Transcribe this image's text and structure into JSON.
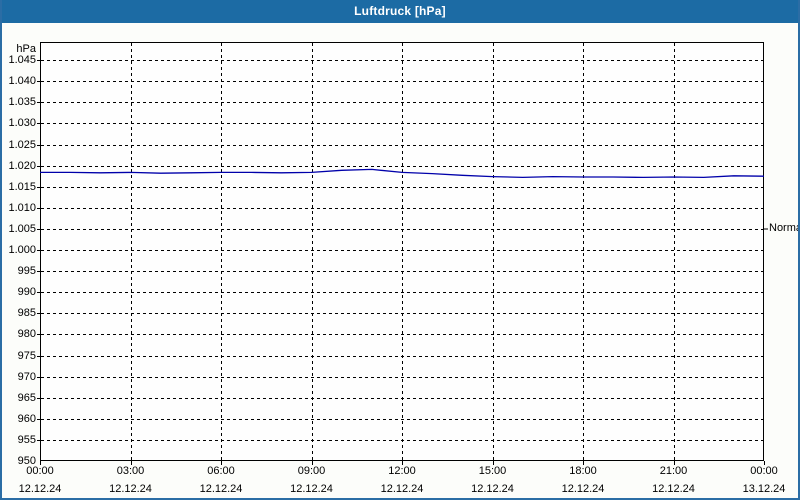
{
  "window": {
    "title": "Luftdruck [hPa]"
  },
  "colors": {
    "titlebar_bg": "#1c6ba4",
    "titlebar_text": "#ffffff",
    "window_border": "#2b6da5",
    "content_bg": "#fcfdfa",
    "plot_bg": "#fefefe",
    "plot_border": "#000000",
    "grid": "#000000",
    "line": "#0000aa",
    "label_text": "#000000"
  },
  "chart_data": {
    "type": "line",
    "title": "Luftdruck [hPa]",
    "xlabel": "",
    "ylabel": "hPa",
    "ylim": [
      950,
      1049.3
    ],
    "x_hours_range": [
      0,
      24
    ],
    "grid": "dashed",
    "legend": "none",
    "y_ticks": [
      {
        "value": 1045,
        "label": "1.045"
      },
      {
        "value": 1040,
        "label": "1.040"
      },
      {
        "value": 1035,
        "label": "1.035"
      },
      {
        "value": 1030,
        "label": "1.030"
      },
      {
        "value": 1025,
        "label": "1.025"
      },
      {
        "value": 1020,
        "label": "1.020"
      },
      {
        "value": 1015,
        "label": "1.015"
      },
      {
        "value": 1010,
        "label": "1.010"
      },
      {
        "value": 1005,
        "label": "1.005"
      },
      {
        "value": 1000,
        "label": "1.000"
      },
      {
        "value": 995,
        "label": "995"
      },
      {
        "value": 990,
        "label": "990"
      },
      {
        "value": 985,
        "label": "985"
      },
      {
        "value": 980,
        "label": "980"
      },
      {
        "value": 975,
        "label": "975"
      },
      {
        "value": 970,
        "label": "970"
      },
      {
        "value": 965,
        "label": "965"
      },
      {
        "value": 960,
        "label": "960"
      },
      {
        "value": 955,
        "label": "955"
      },
      {
        "value": 950,
        "label": "950"
      }
    ],
    "x_ticks": [
      {
        "hour": 0,
        "time": "00:00",
        "date": "12.12.24"
      },
      {
        "hour": 3,
        "time": "03:00",
        "date": "12.12.24"
      },
      {
        "hour": 6,
        "time": "06:00",
        "date": "12.12.24"
      },
      {
        "hour": 9,
        "time": "09:00",
        "date": "12.12.24"
      },
      {
        "hour": 12,
        "time": "12:00",
        "date": "12.12.24"
      },
      {
        "hour": 15,
        "time": "15:00",
        "date": "12.12.24"
      },
      {
        "hour": 18,
        "time": "18:00",
        "date": "12.12.24"
      },
      {
        "hour": 21,
        "time": "21:00",
        "date": "12.12.24"
      },
      {
        "hour": 24,
        "time": "00:00",
        "date": "13.12.24"
      }
    ],
    "series": [
      {
        "name": "Luftdruck",
        "unit": "hPa",
        "color": "#0000aa",
        "x_hours": [
          0,
          1,
          2,
          3,
          4,
          5,
          6,
          7,
          8,
          9,
          10,
          11,
          12,
          13,
          14,
          15,
          16,
          17,
          18,
          19,
          20,
          21,
          22,
          23,
          24
        ],
        "values": [
          1018.4,
          1018.4,
          1018.3,
          1018.4,
          1018.2,
          1018.3,
          1018.4,
          1018.4,
          1018.3,
          1018.4,
          1018.9,
          1019.1,
          1018.4,
          1018.1,
          1017.7,
          1017.4,
          1017.2,
          1017.4,
          1017.3,
          1017.3,
          1017.2,
          1017.3,
          1017.2,
          1017.6,
          1017.5
        ]
      }
    ],
    "annotations": [
      {
        "label": "Normal",
        "value": 1005,
        "side": "right"
      }
    ]
  }
}
